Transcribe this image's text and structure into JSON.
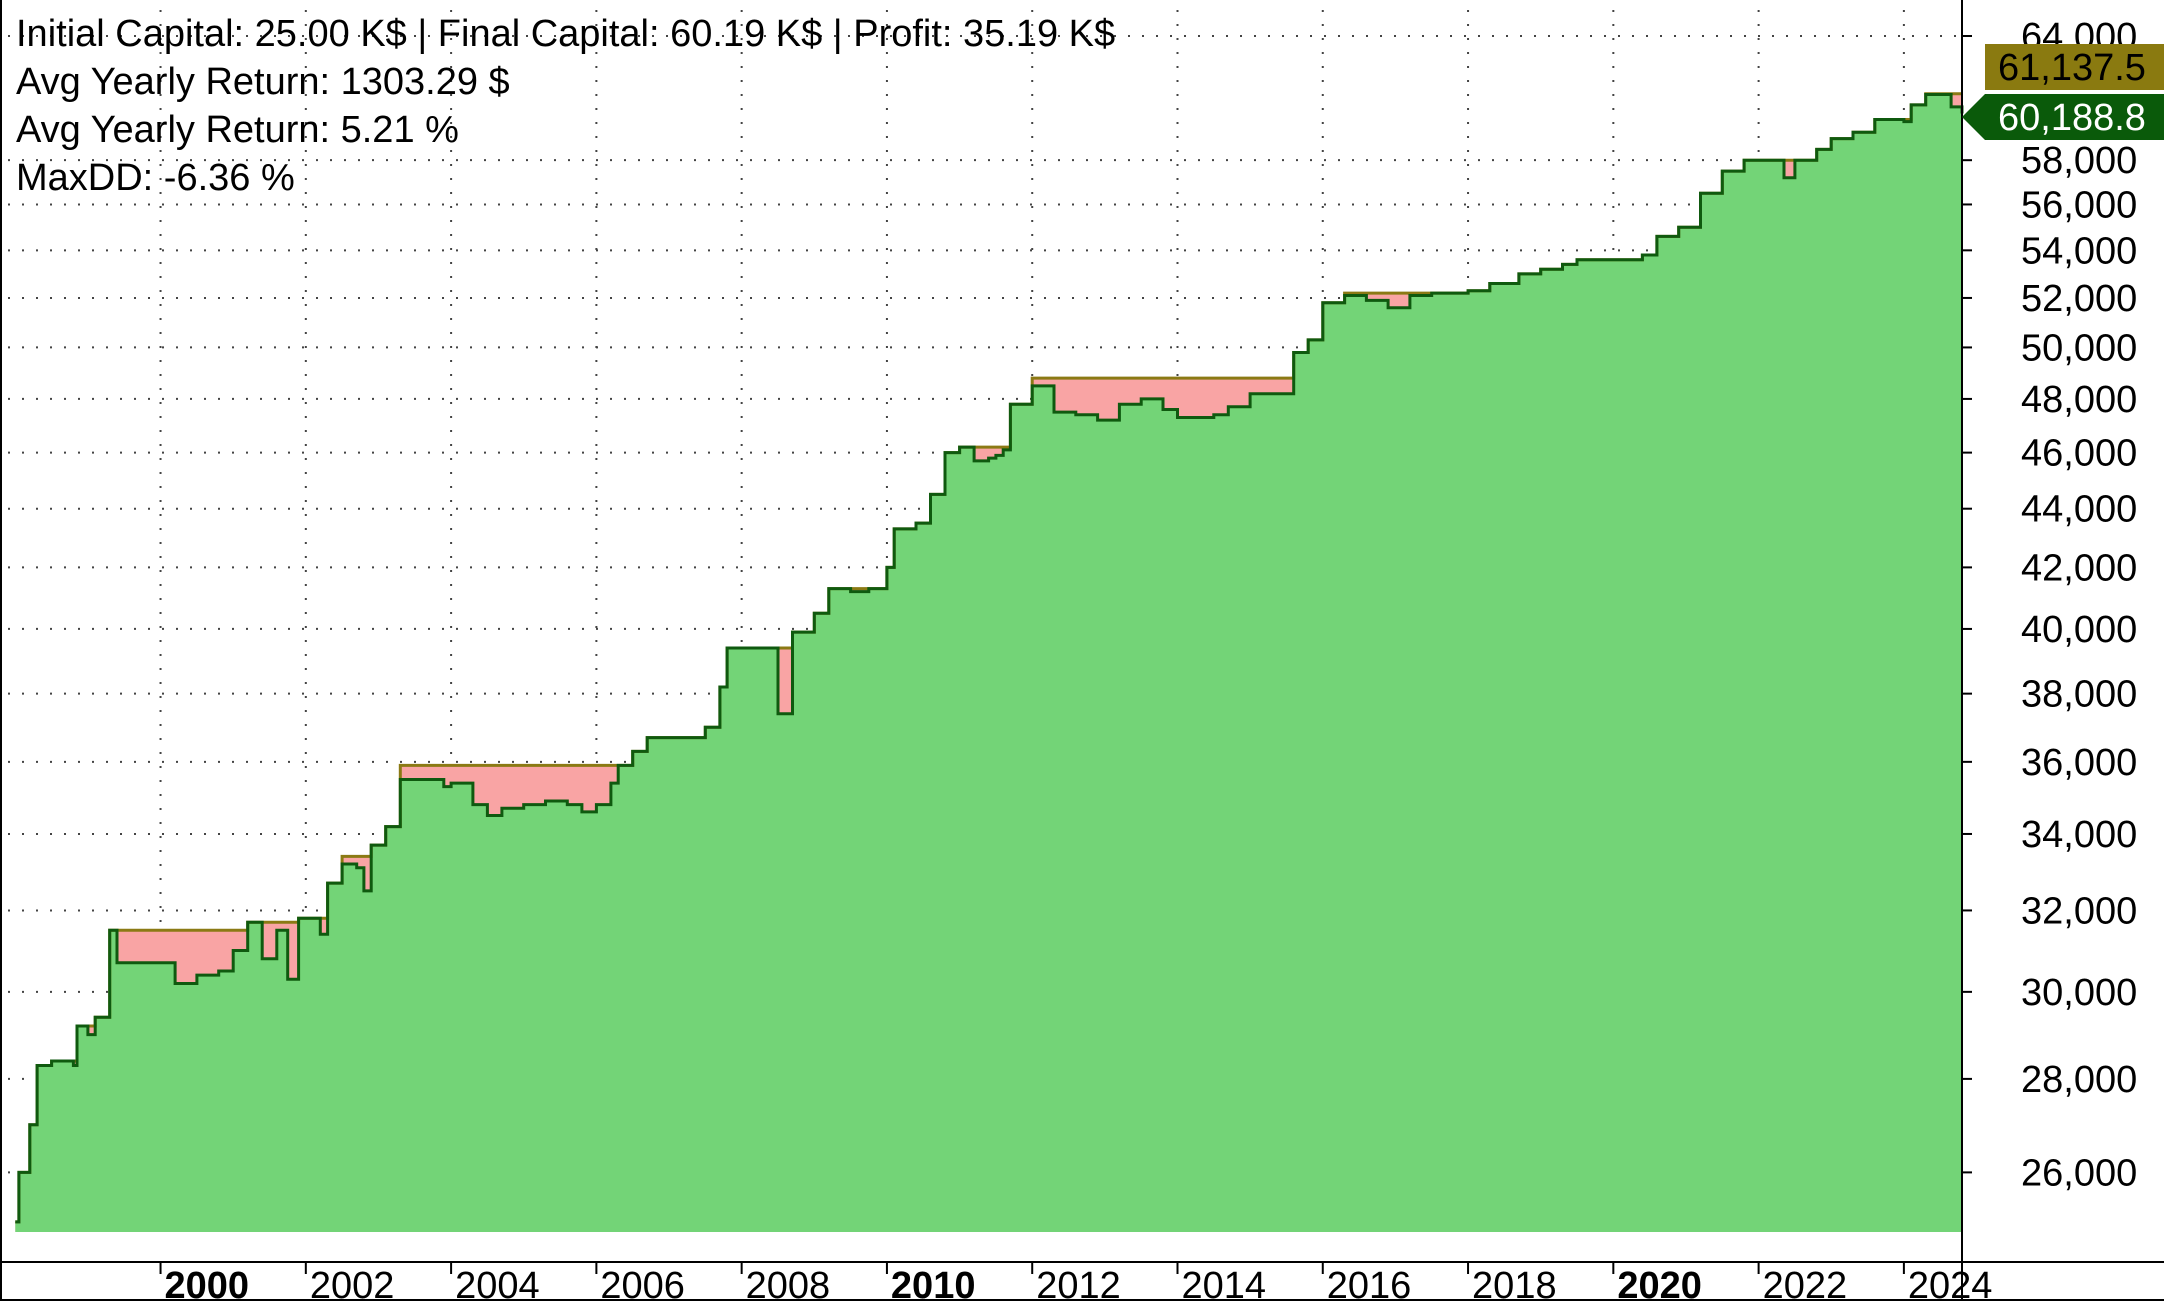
{
  "stats": {
    "line1": "Initial Capital: 25.00 K$ | Final Capital: 60.19 K$ | Profit: 35.19 K$",
    "line2": "Avg Yearly Return: 1303.29 $",
    "line3": "Avg Yearly Return: 5.21 %",
    "line4": "MaxDD: -6.36 %"
  },
  "price_tags": {
    "peak": "61,137.5",
    "equity": "60,188.8"
  },
  "colors": {
    "equity_fill": "#73d477",
    "drawdown_fill": "#f9a4a4",
    "equity_line": "#0f5a0f",
    "peak_line": "#8b7a14",
    "peak_tag_bg": "#8a7a10",
    "equity_tag_bg": "#0a5a0a",
    "grid": "#444444"
  },
  "chart_data": {
    "type": "area",
    "title": "",
    "xlabel": "",
    "ylabel": "",
    "yscale": "log",
    "ylim": [
      24800,
      64000
    ],
    "xlim": [
      1997.9,
      2024.8
    ],
    "grid": true,
    "x_ticks": [
      {
        "label": "2000",
        "value": 2000,
        "major": true
      },
      {
        "label": "2002",
        "value": 2002,
        "major": false
      },
      {
        "label": "2004",
        "value": 2004,
        "major": false
      },
      {
        "label": "2006",
        "value": 2006,
        "major": false
      },
      {
        "label": "2008",
        "value": 2008,
        "major": false
      },
      {
        "label": "2010",
        "value": 2010,
        "major": true
      },
      {
        "label": "2012",
        "value": 2012,
        "major": false
      },
      {
        "label": "2014",
        "value": 2014,
        "major": false
      },
      {
        "label": "2016",
        "value": 2016,
        "major": false
      },
      {
        "label": "2018",
        "value": 2018,
        "major": false
      },
      {
        "label": "2020",
        "value": 2020,
        "major": true
      },
      {
        "label": "2022",
        "value": 2022,
        "major": false
      },
      {
        "label": "2024",
        "value": 2024,
        "major": false
      }
    ],
    "y_ticks": [
      {
        "label": "26,000",
        "value": 26000
      },
      {
        "label": "28,000",
        "value": 28000
      },
      {
        "label": "30,000",
        "value": 30000
      },
      {
        "label": "32,000",
        "value": 32000
      },
      {
        "label": "34,000",
        "value": 34000
      },
      {
        "label": "36,000",
        "value": 36000
      },
      {
        "label": "38,000",
        "value": 38000
      },
      {
        "label": "40,000",
        "value": 40000
      },
      {
        "label": "42,000",
        "value": 42000
      },
      {
        "label": "44,000",
        "value": 44000
      },
      {
        "label": "46,000",
        "value": 46000
      },
      {
        "label": "48,000",
        "value": 48000
      },
      {
        "label": "50,000",
        "value": 50000
      },
      {
        "label": "52,000",
        "value": 52000
      },
      {
        "label": "54,000",
        "value": 54000
      },
      {
        "label": "56,000",
        "value": 56000
      },
      {
        "label": "58,000",
        "value": 58000
      },
      {
        "label": "64,000",
        "value": 64000
      }
    ],
    "series": [
      {
        "name": "",
        "role": "equity",
        "points": [
          [
            1998.0,
            25000
          ],
          [
            1998.05,
            26000
          ],
          [
            1998.15,
            26000
          ],
          [
            1998.2,
            27000
          ],
          [
            1998.3,
            28300
          ],
          [
            1998.5,
            28400
          ],
          [
            1998.8,
            28300
          ],
          [
            1998.85,
            29200
          ],
          [
            1999.0,
            29000
          ],
          [
            1999.1,
            29400
          ],
          [
            1999.3,
            31500
          ],
          [
            1999.4,
            30700
          ],
          [
            1999.9,
            30700
          ],
          [
            2000.2,
            30200
          ],
          [
            2000.5,
            30400
          ],
          [
            2000.8,
            30500
          ],
          [
            2001.0,
            31000
          ],
          [
            2001.2,
            31700
          ],
          [
            2001.4,
            30800
          ],
          [
            2001.6,
            31500
          ],
          [
            2001.75,
            30300
          ],
          [
            2001.9,
            31800
          ],
          [
            2002.2,
            31400
          ],
          [
            2002.3,
            32700
          ],
          [
            2002.5,
            33200
          ],
          [
            2002.7,
            33100
          ],
          [
            2002.8,
            32500
          ],
          [
            2002.9,
            33700
          ],
          [
            2003.1,
            34200
          ],
          [
            2003.3,
            35500
          ],
          [
            2003.7,
            35500
          ],
          [
            2003.9,
            35300
          ],
          [
            2004.0,
            35400
          ],
          [
            2004.3,
            34800
          ],
          [
            2004.5,
            34500
          ],
          [
            2004.7,
            34700
          ],
          [
            2005.0,
            34800
          ],
          [
            2005.3,
            34900
          ],
          [
            2005.6,
            34800
          ],
          [
            2005.8,
            34600
          ],
          [
            2006.0,
            34800
          ],
          [
            2006.2,
            35400
          ],
          [
            2006.3,
            35900
          ],
          [
            2006.5,
            36300
          ],
          [
            2006.7,
            36700
          ],
          [
            2007.2,
            36700
          ],
          [
            2007.5,
            37000
          ],
          [
            2007.7,
            38200
          ],
          [
            2007.8,
            39400
          ],
          [
            2008.4,
            39400
          ],
          [
            2008.5,
            37400
          ],
          [
            2008.65,
            37400
          ],
          [
            2008.7,
            39900
          ],
          [
            2009.0,
            40500
          ],
          [
            2009.2,
            41300
          ],
          [
            2009.5,
            41200
          ],
          [
            2009.75,
            41300
          ],
          [
            2010.0,
            42000
          ],
          [
            2010.1,
            43300
          ],
          [
            2010.4,
            43500
          ],
          [
            2010.6,
            44500
          ],
          [
            2010.8,
            46000
          ],
          [
            2011.0,
            46200
          ],
          [
            2011.2,
            45700
          ],
          [
            2011.4,
            45800
          ],
          [
            2011.5,
            45900
          ],
          [
            2011.6,
            46100
          ],
          [
            2011.7,
            47800
          ],
          [
            2012.0,
            48500
          ],
          [
            2012.3,
            47500
          ],
          [
            2012.6,
            47400
          ],
          [
            2012.9,
            47200
          ],
          [
            2013.2,
            47800
          ],
          [
            2013.5,
            48000
          ],
          [
            2013.8,
            47600
          ],
          [
            2014.0,
            47300
          ],
          [
            2014.3,
            47300
          ],
          [
            2014.5,
            47400
          ],
          [
            2014.7,
            47700
          ],
          [
            2015.0,
            48200
          ],
          [
            2015.4,
            48200
          ],
          [
            2015.6,
            49800
          ],
          [
            2015.8,
            50300
          ],
          [
            2016.0,
            51800
          ],
          [
            2016.3,
            52100
          ],
          [
            2016.6,
            51900
          ],
          [
            2016.9,
            51600
          ],
          [
            2017.2,
            52100
          ],
          [
            2017.5,
            52200
          ],
          [
            2018.0,
            52300
          ],
          [
            2018.3,
            52600
          ],
          [
            2018.7,
            53000
          ],
          [
            2019.0,
            53200
          ],
          [
            2019.3,
            53400
          ],
          [
            2019.5,
            53600
          ],
          [
            2020.0,
            53600
          ],
          [
            2020.4,
            53800
          ],
          [
            2020.6,
            54600
          ],
          [
            2020.9,
            55000
          ],
          [
            2021.2,
            56500
          ],
          [
            2021.5,
            57500
          ],
          [
            2021.8,
            58000
          ],
          [
            2022.2,
            58000
          ],
          [
            2022.35,
            57200
          ],
          [
            2022.5,
            58000
          ],
          [
            2022.8,
            58500
          ],
          [
            2023.0,
            59000
          ],
          [
            2023.3,
            59300
          ],
          [
            2023.6,
            59900
          ],
          [
            2024.0,
            59800
          ],
          [
            2024.1,
            60600
          ],
          [
            2024.3,
            61100
          ],
          [
            2024.55,
            61100
          ],
          [
            2024.65,
            60500
          ],
          [
            2024.8,
            60189
          ]
        ]
      },
      {
        "name": "",
        "role": "peak",
        "points": [
          [
            1998.0,
            25000
          ],
          [
            1998.05,
            26000
          ],
          [
            1998.15,
            26000
          ],
          [
            1998.2,
            27000
          ],
          [
            1998.3,
            28300
          ],
          [
            1998.5,
            28400
          ],
          [
            1998.85,
            29200
          ],
          [
            1999.0,
            29200
          ],
          [
            1999.1,
            29400
          ],
          [
            1999.3,
            31500
          ],
          [
            2001.2,
            31700
          ],
          [
            2001.9,
            31800
          ],
          [
            2002.3,
            32700
          ],
          [
            2002.5,
            33400
          ],
          [
            2002.9,
            33700
          ],
          [
            2003.1,
            34200
          ],
          [
            2003.3,
            35900
          ],
          [
            2006.3,
            35900
          ],
          [
            2006.5,
            36300
          ],
          [
            2006.7,
            36700
          ],
          [
            2007.5,
            37000
          ],
          [
            2007.7,
            38200
          ],
          [
            2007.8,
            39400
          ],
          [
            2008.7,
            39900
          ],
          [
            2009.0,
            40500
          ],
          [
            2009.2,
            41300
          ],
          [
            2010.0,
            42000
          ],
          [
            2010.1,
            43300
          ],
          [
            2010.4,
            43500
          ],
          [
            2010.6,
            44500
          ],
          [
            2010.8,
            46000
          ],
          [
            2011.0,
            46200
          ],
          [
            2011.7,
            47800
          ],
          [
            2012.0,
            48800
          ],
          [
            2015.6,
            49800
          ],
          [
            2015.8,
            50300
          ],
          [
            2016.0,
            51800
          ],
          [
            2016.3,
            52200
          ],
          [
            2018.0,
            52300
          ],
          [
            2018.3,
            52600
          ],
          [
            2018.7,
            53000
          ],
          [
            2019.0,
            53200
          ],
          [
            2019.3,
            53400
          ],
          [
            2019.5,
            53600
          ],
          [
            2020.4,
            53800
          ],
          [
            2020.6,
            54600
          ],
          [
            2020.9,
            55000
          ],
          [
            2021.2,
            56500
          ],
          [
            2021.5,
            57500
          ],
          [
            2021.8,
            58000
          ],
          [
            2022.5,
            58000
          ],
          [
            2022.8,
            58500
          ],
          [
            2023.0,
            59000
          ],
          [
            2023.3,
            59300
          ],
          [
            2023.6,
            59900
          ],
          [
            2024.1,
            60600
          ],
          [
            2024.3,
            61137.5
          ],
          [
            2024.8,
            61137.5
          ]
        ]
      }
    ]
  }
}
